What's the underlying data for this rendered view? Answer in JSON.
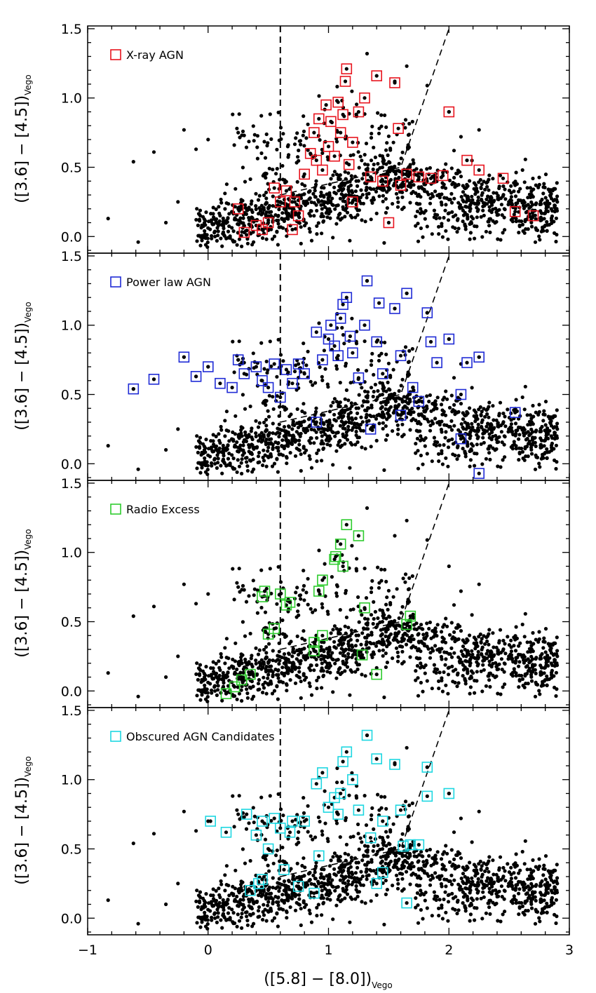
{
  "figure": {
    "xlabel_main": "([5.8] − [8.0])",
    "xlabel_sub": "Vego",
    "ylabel_main": "([3.6] − [4.5])",
    "ylabel_sub": "Vego"
  },
  "chart_data": [
    {
      "type": "scatter",
      "panel": 1,
      "legend": "X-ray AGN",
      "highlight_color": "#e8141e",
      "xlim": [
        -1,
        3
      ],
      "ylim": [
        -0.12,
        1.52
      ],
      "xticks": [
        -1,
        0,
        1,
        2,
        3
      ],
      "xtick_labels": [
        "−1",
        "0",
        "1",
        "2",
        "3"
      ],
      "yticks": [
        0.0,
        0.5,
        1.0,
        1.5
      ],
      "ytick_labels": [
        "0.0",
        "0.5",
        "1.0",
        "1.5"
      ],
      "selection_lines": {
        "vertical_x": 0.6,
        "diagonal": [
          [
            0.6,
            0.3
          ],
          [
            1.6,
            0.5
          ],
          [
            2.0,
            1.5
          ]
        ],
        "style": "dashed"
      },
      "background_points": "~1300 black field galaxies forming a band from (0.0, 0.05) to (2.8, 0.25), with a branch rising toward (1.6, 0.45)",
      "highlighted": [
        [
          0.25,
          0.2
        ],
        [
          0.5,
          0.1
        ],
        [
          0.55,
          0.35
        ],
        [
          0.65,
          0.33
        ],
        [
          0.7,
          0.05
        ],
        [
          0.72,
          0.25
        ],
        [
          0.75,
          0.15
        ],
        [
          0.8,
          0.45
        ],
        [
          0.85,
          0.6
        ],
        [
          0.88,
          0.75
        ],
        [
          0.9,
          0.55
        ],
        [
          0.92,
          0.85
        ],
        [
          0.95,
          0.48
        ],
        [
          0.98,
          0.95
        ],
        [
          1.0,
          0.65
        ],
        [
          1.02,
          0.83
        ],
        [
          1.05,
          0.58
        ],
        [
          1.08,
          0.97
        ],
        [
          1.1,
          0.75
        ],
        [
          1.12,
          0.88
        ],
        [
          1.14,
          1.12
        ],
        [
          1.15,
          1.21
        ],
        [
          1.17,
          0.52
        ],
        [
          1.2,
          0.68
        ],
        [
          1.25,
          0.9
        ],
        [
          1.3,
          1.0
        ],
        [
          1.35,
          0.43
        ],
        [
          1.4,
          1.16
        ],
        [
          1.45,
          0.4
        ],
        [
          1.55,
          1.11
        ],
        [
          1.58,
          0.78
        ],
        [
          1.6,
          0.37
        ],
        [
          1.65,
          0.45
        ],
        [
          1.75,
          0.43
        ],
        [
          1.85,
          0.42
        ],
        [
          1.95,
          0.44
        ],
        [
          2.0,
          0.9
        ],
        [
          2.15,
          0.55
        ],
        [
          2.25,
          0.48
        ],
        [
          2.45,
          0.42
        ],
        [
          2.55,
          0.18
        ],
        [
          2.7,
          0.15
        ],
        [
          0.3,
          0.03
        ],
        [
          0.4,
          0.08
        ],
        [
          0.6,
          0.25
        ],
        [
          0.45,
          0.05
        ],
        [
          1.5,
          0.1
        ],
        [
          1.2,
          0.25
        ]
      ]
    },
    {
      "type": "scatter",
      "panel": 2,
      "legend": "Power law AGN",
      "highlight_color": "#1f2bd6",
      "xlim": [
        -1,
        3
      ],
      "ylim": [
        -0.12,
        1.52
      ],
      "xticks": [
        -1,
        0,
        1,
        2,
        3
      ],
      "xtick_labels": [
        "−1",
        "0",
        "1",
        "2",
        "3"
      ],
      "yticks": [
        0.0,
        0.5,
        1.0,
        1.5
      ],
      "ytick_labels": [
        "0.0",
        "0.5",
        "1.0",
        "1.5"
      ],
      "selection_lines": {
        "vertical_x": 0.6,
        "diagonal": [
          [
            0.6,
            0.3
          ],
          [
            1.6,
            0.5
          ],
          [
            2.0,
            1.5
          ]
        ],
        "style": "dashed"
      },
      "highlighted": [
        [
          -0.62,
          0.54
        ],
        [
          -0.45,
          0.61
        ],
        [
          -0.2,
          0.77
        ],
        [
          -0.1,
          0.63
        ],
        [
          0.0,
          0.7
        ],
        [
          0.1,
          0.58
        ],
        [
          0.2,
          0.55
        ],
        [
          0.25,
          0.75
        ],
        [
          0.3,
          0.65
        ],
        [
          0.4,
          0.7
        ],
        [
          0.45,
          0.6
        ],
        [
          0.5,
          0.55
        ],
        [
          0.55,
          0.72
        ],
        [
          0.6,
          0.48
        ],
        [
          0.65,
          0.68
        ],
        [
          0.7,
          0.58
        ],
        [
          0.75,
          0.72
        ],
        [
          0.8,
          0.65
        ],
        [
          0.9,
          0.95
        ],
        [
          0.95,
          0.75
        ],
        [
          1.0,
          0.9
        ],
        [
          1.02,
          1.0
        ],
        [
          1.05,
          0.85
        ],
        [
          1.08,
          0.78
        ],
        [
          1.1,
          1.05
        ],
        [
          1.12,
          1.15
        ],
        [
          1.15,
          1.2
        ],
        [
          1.18,
          0.92
        ],
        [
          1.2,
          0.8
        ],
        [
          1.25,
          0.62
        ],
        [
          1.3,
          1.0
        ],
        [
          1.32,
          1.32
        ],
        [
          1.4,
          0.88
        ],
        [
          1.42,
          1.16
        ],
        [
          1.45,
          0.65
        ],
        [
          1.55,
          1.12
        ],
        [
          1.6,
          0.78
        ],
        [
          1.65,
          1.23
        ],
        [
          1.7,
          0.55
        ],
        [
          1.75,
          0.45
        ],
        [
          1.82,
          1.09
        ],
        [
          1.85,
          0.88
        ],
        [
          1.9,
          0.73
        ],
        [
          2.0,
          0.9
        ],
        [
          2.1,
          0.5
        ],
        [
          2.15,
          0.73
        ],
        [
          2.25,
          0.77
        ],
        [
          2.1,
          0.18
        ],
        [
          2.25,
          -0.07
        ],
        [
          2.55,
          0.37
        ],
        [
          1.35,
          0.25
        ],
        [
          1.6,
          0.35
        ],
        [
          0.9,
          0.3
        ]
      ]
    },
    {
      "type": "scatter",
      "panel": 3,
      "legend": "Radio Excess",
      "highlight_color": "#2ecc2e",
      "xlim": [
        -1,
        3
      ],
      "ylim": [
        -0.12,
        1.52
      ],
      "xticks": [
        -1,
        0,
        1,
        2,
        3
      ],
      "xtick_labels": [
        "−1",
        "0",
        "1",
        "2",
        "3"
      ],
      "yticks": [
        0.0,
        0.5,
        1.0,
        1.5
      ],
      "ytick_labels": [
        "0.0",
        "0.5",
        "1.0",
        "1.5"
      ],
      "selection_lines": {
        "vertical_x": 0.6,
        "diagonal": [
          [
            0.6,
            0.3
          ],
          [
            1.6,
            0.5
          ],
          [
            2.0,
            1.5
          ]
        ],
        "style": "dashed"
      },
      "highlighted": [
        [
          0.15,
          -0.02
        ],
        [
          0.22,
          0.03
        ],
        [
          0.28,
          0.08
        ],
        [
          0.35,
          0.12
        ],
        [
          0.45,
          0.68
        ],
        [
          0.47,
          0.72
        ],
        [
          0.5,
          0.41
        ],
        [
          0.55,
          0.45
        ],
        [
          0.6,
          0.7
        ],
        [
          0.65,
          0.62
        ],
        [
          0.68,
          0.64
        ],
        [
          0.88,
          0.29
        ],
        [
          0.88,
          0.35
        ],
        [
          0.92,
          0.72
        ],
        [
          0.95,
          0.8
        ],
        [
          1.05,
          0.95
        ],
        [
          1.06,
          0.97
        ],
        [
          1.1,
          1.06
        ],
        [
          1.12,
          0.9
        ],
        [
          1.15,
          1.2
        ],
        [
          1.25,
          1.12
        ],
        [
          1.28,
          0.26
        ],
        [
          1.3,
          0.6
        ],
        [
          1.4,
          0.12
        ],
        [
          1.65,
          0.48
        ],
        [
          1.68,
          0.54
        ],
        [
          0.95,
          0.4
        ]
      ]
    },
    {
      "type": "scatter",
      "panel": 4,
      "legend": "Obscured AGN Candidates",
      "highlight_color": "#1ed7e1",
      "xlim": [
        -1,
        3
      ],
      "ylim": [
        -0.12,
        1.52
      ],
      "xticks": [
        -1,
        0,
        1,
        2,
        3
      ],
      "xtick_labels": [
        "−1",
        "0",
        "1",
        "2",
        "3"
      ],
      "yticks": [
        0.0,
        0.5,
        1.0,
        1.5
      ],
      "ytick_labels": [
        "0.0",
        "0.5",
        "1.0",
        "1.5"
      ],
      "selection_lines": {
        "vertical_x": 0.6,
        "diagonal": [
          [
            0.6,
            0.3
          ],
          [
            1.6,
            0.5
          ],
          [
            2.0,
            1.5
          ]
        ],
        "style": "dashed"
      },
      "highlighted": [
        [
          0.02,
          0.7
        ],
        [
          0.15,
          0.62
        ],
        [
          0.32,
          0.75
        ],
        [
          0.4,
          0.6
        ],
        [
          0.45,
          0.7
        ],
        [
          0.5,
          0.5
        ],
        [
          0.55,
          0.72
        ],
        [
          0.6,
          0.65
        ],
        [
          0.63,
          0.35
        ],
        [
          0.68,
          0.62
        ],
        [
          0.7,
          0.7
        ],
        [
          0.75,
          0.23
        ],
        [
          0.8,
          0.7
        ],
        [
          0.88,
          0.18
        ],
        [
          0.9,
          0.97
        ],
        [
          0.92,
          0.45
        ],
        [
          0.95,
          1.05
        ],
        [
          1.0,
          0.8
        ],
        [
          1.05,
          0.87
        ],
        [
          1.08,
          0.75
        ],
        [
          1.1,
          0.9
        ],
        [
          1.12,
          1.13
        ],
        [
          1.15,
          1.2
        ],
        [
          1.2,
          1.0
        ],
        [
          1.25,
          0.78
        ],
        [
          1.32,
          1.32
        ],
        [
          1.35,
          0.58
        ],
        [
          1.4,
          1.15
        ],
        [
          1.45,
          0.7
        ],
        [
          1.45,
          0.33
        ],
        [
          1.55,
          1.11
        ],
        [
          1.6,
          0.78
        ],
        [
          1.62,
          0.52
        ],
        [
          1.65,
          0.11
        ],
        [
          1.68,
          0.53
        ],
        [
          1.75,
          0.53
        ],
        [
          1.82,
          0.88
        ],
        [
          1.82,
          1.09
        ],
        [
          2.0,
          0.9
        ],
        [
          0.35,
          0.2
        ],
        [
          0.42,
          0.25
        ],
        [
          0.45,
          0.28
        ],
        [
          1.4,
          0.25
        ]
      ]
    }
  ]
}
